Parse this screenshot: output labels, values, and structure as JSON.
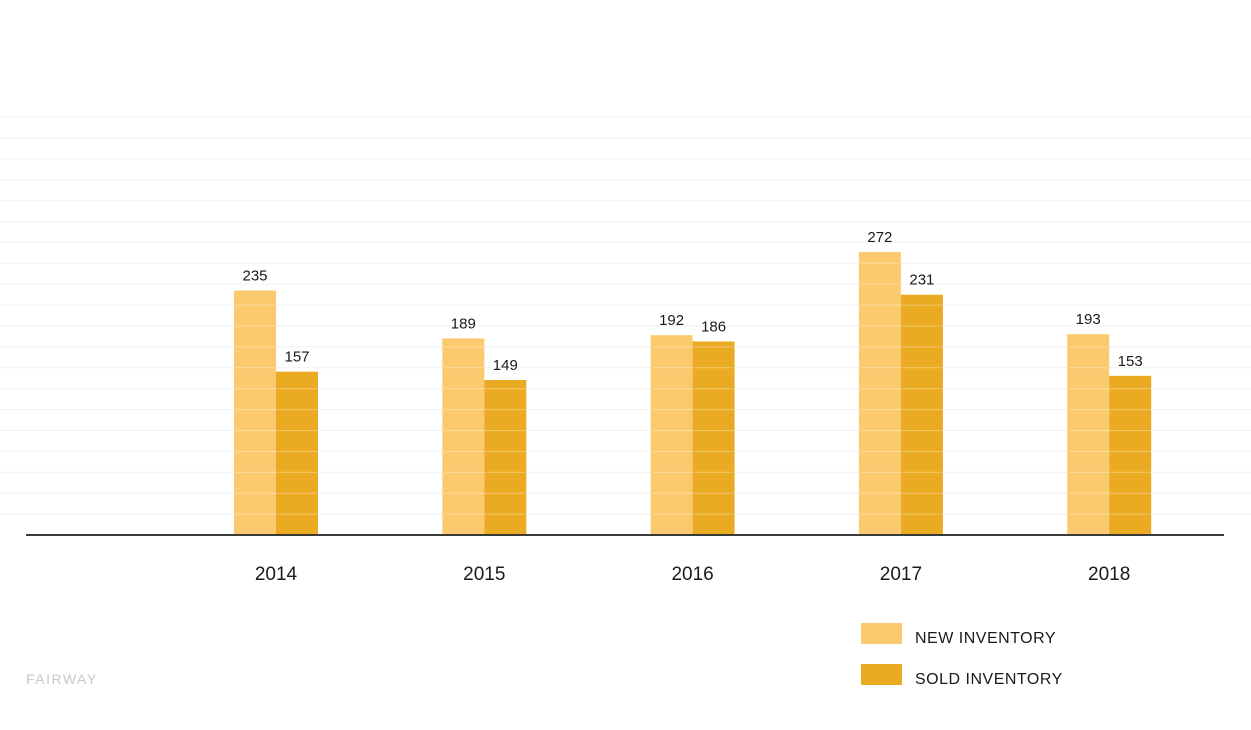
{
  "brand": {
    "text": "FAIRWAY"
  },
  "colors": {
    "new": "#fcca6e",
    "sold": "#eaaa22",
    "axis": "#3a3a3a",
    "grid": "#f2f2f2",
    "text": "#1a1a1a"
  },
  "chart_data": {
    "type": "bar",
    "title": "",
    "xlabel": "",
    "ylabel": "",
    "categories": [
      "2014",
      "2015",
      "2016",
      "2017",
      "2018"
    ],
    "series": [
      {
        "name": "NEW INVENTORY",
        "values": [
          235,
          189,
          192,
          272,
          193
        ]
      },
      {
        "name": "SOLD INVENTORY",
        "values": [
          157,
          149,
          186,
          231,
          153
        ]
      }
    ],
    "ylim": [
      0,
      400
    ],
    "grid": true,
    "legend": "bottom-right",
    "data_labels": true
  }
}
